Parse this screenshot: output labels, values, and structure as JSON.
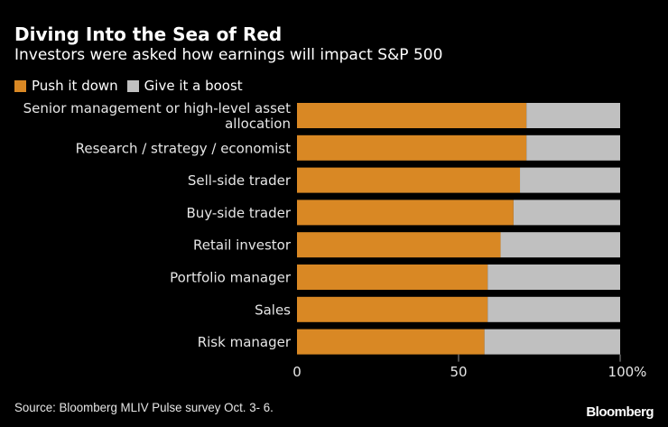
{
  "chart_data": {
    "type": "bar",
    "orientation": "horizontal",
    "stacked": true,
    "title": "Diving Into the Sea of Red",
    "subtitle": "Investors were asked how earnings will impact S&P 500",
    "categories": [
      [
        "Senior management or high-level asset",
        "allocation"
      ],
      [
        "Research / strategy / economist"
      ],
      [
        "Sell-side trader"
      ],
      [
        "Buy-side trader"
      ],
      [
        "Retail investor"
      ],
      [
        "Portfolio manager"
      ],
      [
        "Sales"
      ],
      [
        "Risk manager"
      ]
    ],
    "series": [
      {
        "name": "Push it down",
        "color": "#d98824",
        "values": [
          71,
          71,
          69,
          67,
          63,
          59,
          59,
          58
        ]
      },
      {
        "name": "Give it a boost",
        "color": "#c0c0c0",
        "values": [
          29,
          29,
          31,
          33,
          37,
          41,
          41,
          42
        ]
      }
    ],
    "xlim": [
      0,
      100
    ],
    "xticks": [
      0,
      50,
      100
    ],
    "xtick_labels": [
      "0",
      "50",
      "100%"
    ],
    "legend_position": "top-left",
    "grid": false
  },
  "footer": {
    "source": "Source: Bloomberg MLIV Pulse survey Oct. 3- 6.",
    "brand": "Bloomberg"
  }
}
